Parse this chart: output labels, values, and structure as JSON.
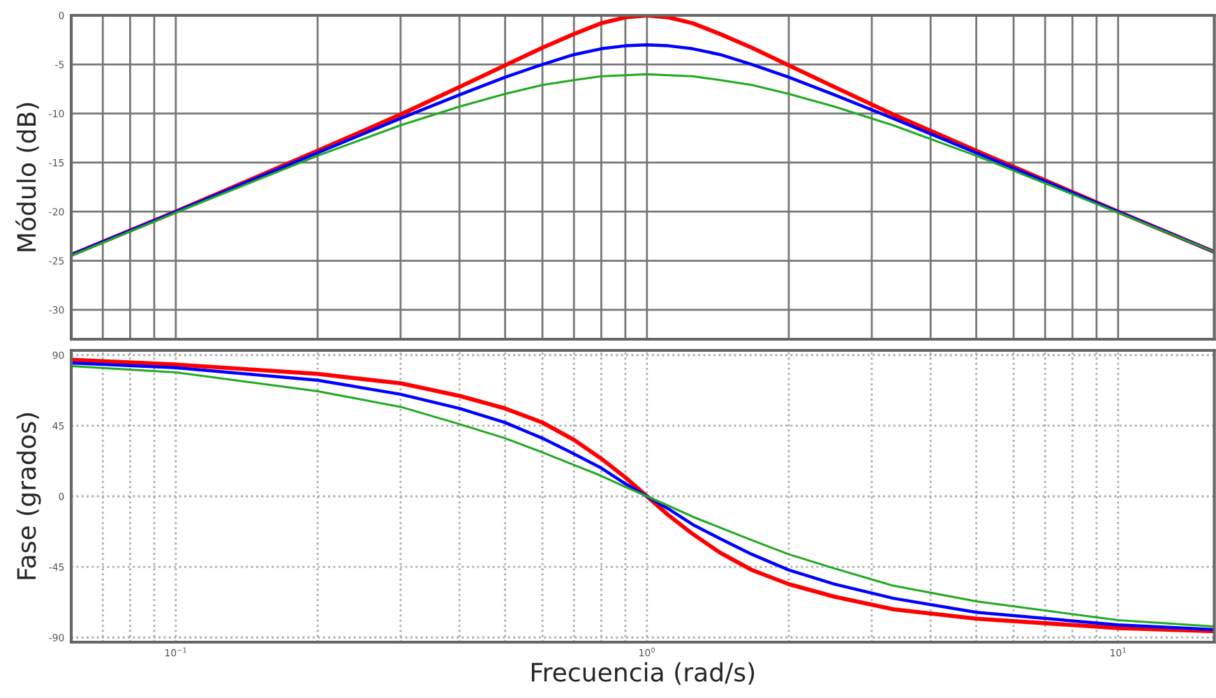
{
  "chart_data": [
    {
      "type": "line",
      "ylabel": "Módulo (dB)",
      "log": "x",
      "grid": true,
      "line_style": "solid",
      "tick_labels": "y",
      "x": [
        0.06,
        0.1,
        0.2,
        0.3,
        0.4,
        0.5,
        0.6,
        0.7,
        0.8,
        0.9,
        1,
        1.11,
        1.25,
        1.43,
        1.67,
        2,
        2.5,
        3.33,
        5,
        10,
        16
      ],
      "xlim": [
        0.06,
        16
      ],
      "xticks": [
        {
          "value": 0.1,
          "label": null
        },
        {
          "value": 1,
          "label": null
        },
        {
          "value": 10,
          "label": null
        }
      ],
      "ylim": [
        -33,
        0
      ],
      "yticks": [
        0,
        -5,
        -10,
        -15,
        -20,
        -25,
        -30
      ],
      "series": [
        {
          "color": "#ff0000",
          "values": [
            -24.4,
            -20.0,
            -13.8,
            -10.1,
            -7.3,
            -5.1,
            -3.3,
            -1.9,
            -0.8,
            -0.2,
            0,
            -0.2,
            -0.8,
            -1.9,
            -3.3,
            -5.1,
            -7.3,
            -10.1,
            -13.8,
            -20.0,
            -24.1
          ]
        },
        {
          "color": "#0000ff",
          "values": [
            -24.4,
            -20.0,
            -14.0,
            -10.5,
            -8.1,
            -6.3,
            -5.0,
            -4.0,
            -3.4,
            -3.1,
            -3.0,
            -3.1,
            -3.4,
            -4.0,
            -5.0,
            -6.3,
            -8.1,
            -10.5,
            -14.0,
            -20.0,
            -24.1
          ]
        },
        {
          "color": "#22aa22",
          "values": [
            -24.5,
            -20.1,
            -14.3,
            -11.2,
            -9.3,
            -8.0,
            -7.1,
            -6.6,
            -6.2,
            -6.1,
            -6.0,
            -6.1,
            -6.2,
            -6.6,
            -7.1,
            -8.0,
            -9.3,
            -11.2,
            -14.3,
            -20.1,
            -24.1
          ]
        }
      ]
    },
    {
      "type": "line",
      "ylabel": "Fase (grados)",
      "xlabel": "Frecuencia (rad/s)",
      "log": "x",
      "grid": true,
      "line_style": "solid",
      "x": [
        0.06,
        0.1,
        0.2,
        0.3,
        0.4,
        0.5,
        0.6,
        0.7,
        0.8,
        0.9,
        1,
        1.11,
        1.25,
        1.43,
        1.67,
        2,
        2.5,
        3.33,
        5,
        10,
        16
      ],
      "xlim": [
        0.06,
        16
      ],
      "xticks": [
        {
          "value": 0.1,
          "label": "10$^{−1}$"
        },
        {
          "value": 1,
          "label": "10$^{0}$"
        },
        {
          "value": 10,
          "label": "10$^{1}$"
        }
      ],
      "ylim": [
        -93,
        93
      ],
      "yticks": [
        90,
        45,
        0,
        {
          "value": -45,
          "label": "-45"
        },
        {
          "value": -90,
          "label": "-90"
        }
      ],
      "series": [
        {
          "color": "#ff0000",
          "values": [
            87,
            84,
            78,
            72,
            64,
            56,
            47,
            36,
            24,
            12,
            0,
            -12,
            -24,
            -36,
            -47,
            -56,
            -64,
            -72,
            -78,
            -84,
            -86
          ]
        },
        {
          "color": "#0000ff",
          "values": [
            85,
            82,
            74,
            65,
            56,
            47,
            37,
            27,
            18,
            8,
            0,
            -8,
            -18,
            -27,
            -37,
            -47,
            -56,
            -65,
            -74,
            -82,
            -85
          ]
        },
        {
          "color": "#22aa22",
          "values": [
            83,
            79,
            67,
            57,
            46,
            37,
            28,
            20,
            13,
            6,
            0,
            -6,
            -13,
            -20,
            -28,
            -37,
            -46,
            -57,
            -67,
            -79,
            -83
          ]
        }
      ]
    }
  ]
}
